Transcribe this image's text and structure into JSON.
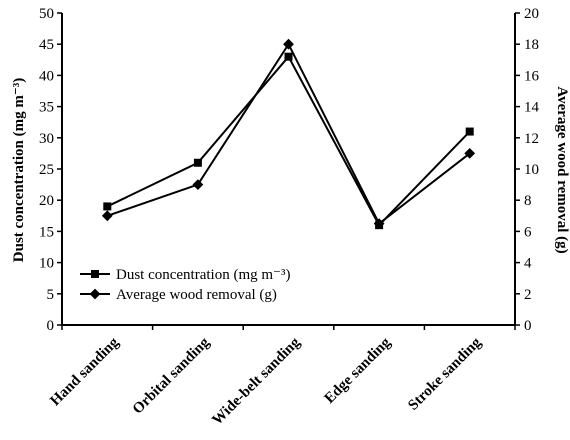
{
  "chart_data": {
    "type": "line",
    "categories": [
      "Hand sanding",
      "Orbital sanding",
      "Wide-belt sanding",
      "Edge sanding",
      "Stroke sanding"
    ],
    "series": [
      {
        "name": "Dust concentration (mg m⁻³)",
        "axis": "left",
        "marker": "square",
        "values": [
          19,
          26,
          43,
          16,
          31
        ]
      },
      {
        "name": "Average wood removal (g)",
        "axis": "right",
        "marker": "diamond",
        "values": [
          7.0,
          9.0,
          18.0,
          6.5,
          11.0
        ]
      }
    ],
    "ylabel_left": "Dust concentration (mg m⁻³)",
    "ylabel_right": "Average wood removal (g)",
    "ylim_left": [
      0,
      50
    ],
    "ylim_right": [
      0,
      20
    ],
    "yticks_left": [
      0,
      5,
      10,
      15,
      20,
      25,
      30,
      35,
      40,
      45,
      50
    ],
    "yticks_right": [
      0,
      2,
      4,
      6,
      8,
      10,
      12,
      14,
      16,
      18,
      20
    ],
    "legend_position": "bottom-left",
    "grid": false,
    "colors": {
      "line": "#000000"
    }
  }
}
